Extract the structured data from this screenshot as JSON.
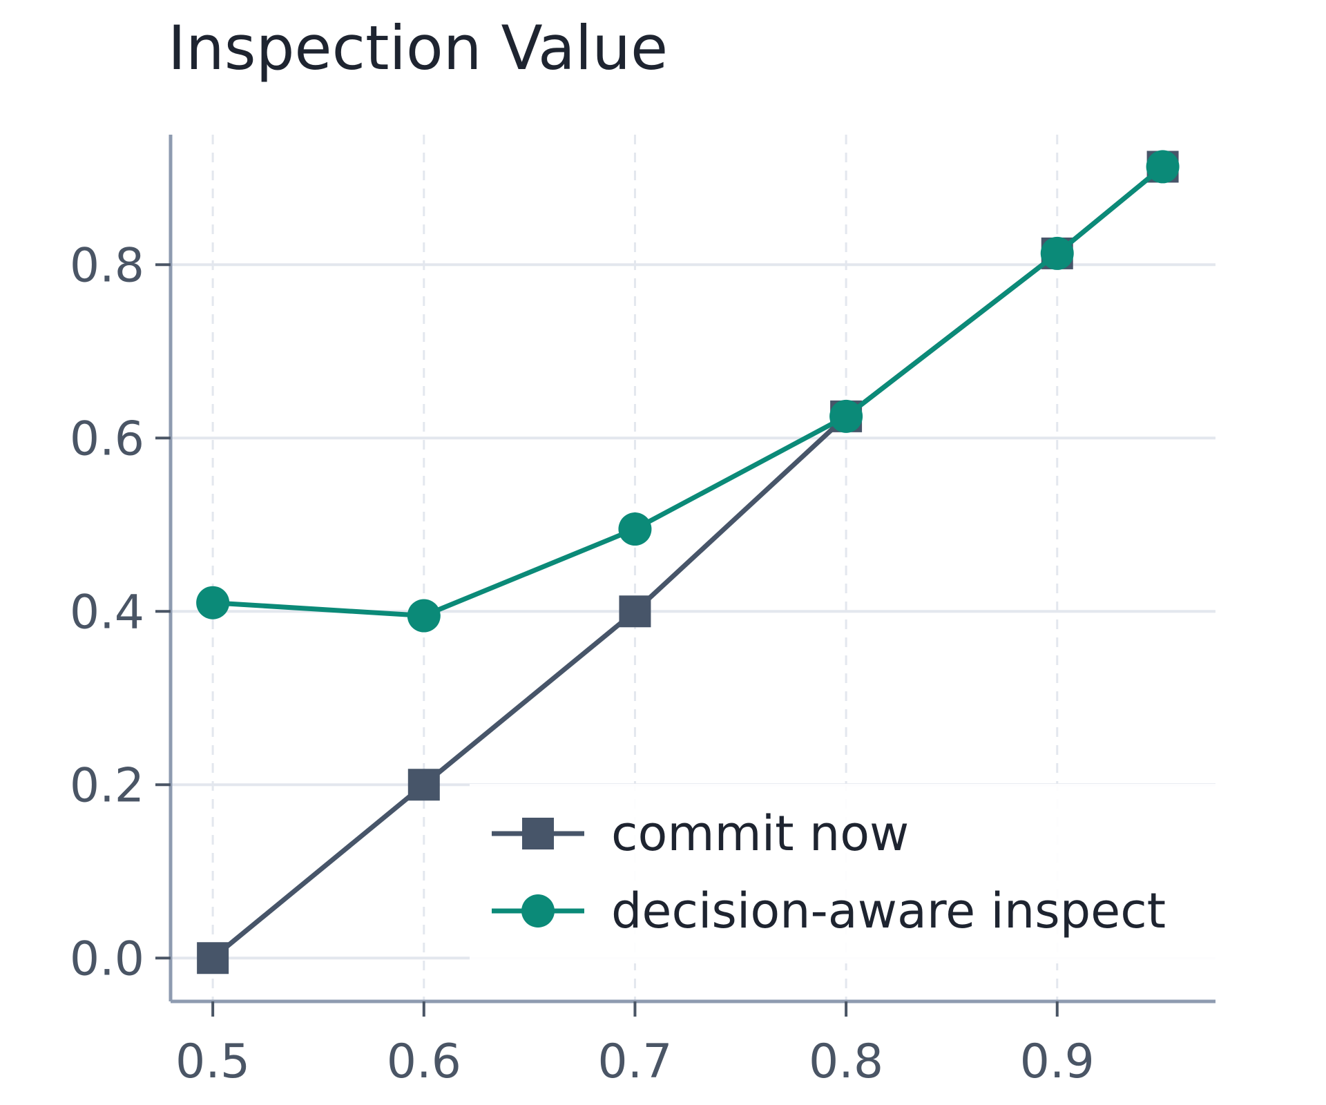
{
  "chart_data": {
    "type": "line",
    "title": "Inspection Value",
    "xlabel": "",
    "ylabel": "",
    "xlim": [
      0.48,
      0.975
    ],
    "ylim": [
      -0.05,
      0.95
    ],
    "xticks": [
      0.5,
      0.6,
      0.7,
      0.8,
      0.9
    ],
    "xtick_labels": [
      "0.5",
      "0.6",
      "0.7",
      "0.8",
      "0.9"
    ],
    "yticks": [
      0.0,
      0.2,
      0.4,
      0.6,
      0.8
    ],
    "ytick_labels": [
      "0.0",
      "0.2",
      "0.4",
      "0.6",
      "0.8"
    ],
    "grid": true,
    "legend_position": "bottom-right",
    "x": [
      0.5,
      0.6,
      0.7,
      0.8,
      0.9,
      0.95
    ],
    "series": [
      {
        "name": "commit now",
        "marker": "square",
        "color": "#475569",
        "values": [
          0.0,
          0.2,
          0.4,
          0.625,
          0.813,
          0.913
        ]
      },
      {
        "name": "decision-aware inspect",
        "marker": "circle",
        "color": "#0b8a78",
        "values": [
          0.41,
          0.395,
          0.495,
          0.625,
          0.813,
          0.913
        ]
      }
    ]
  }
}
